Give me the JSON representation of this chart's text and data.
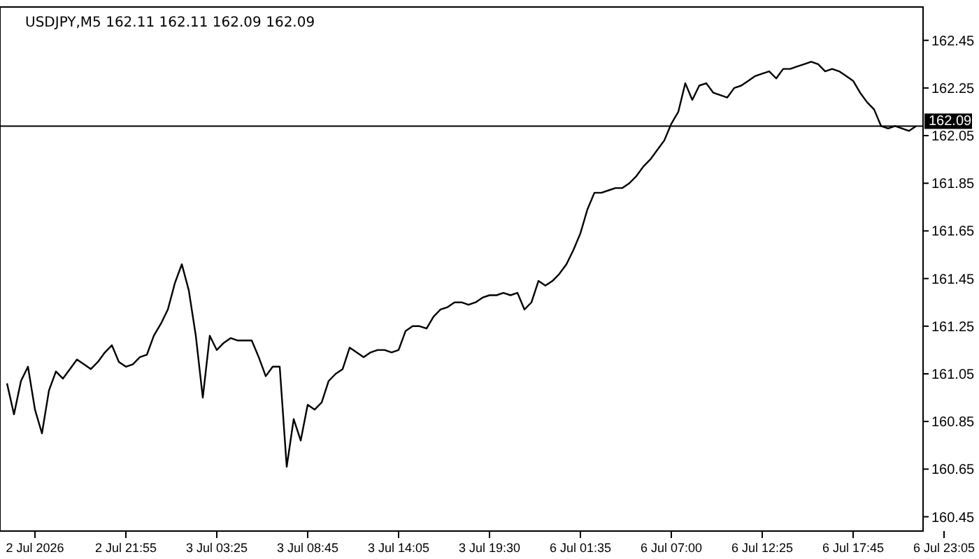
{
  "chart_data": {
    "type": "line",
    "title": "USDJPY,M5  162.11 162.11 162.09 162.09",
    "categories": [
      null,
      null,
      null,
      null,
      "2 Jul 2026",
      null,
      null,
      null,
      null,
      null,
      null,
      null,
      null,
      null,
      null,
      null,
      null,
      "2 Jul 21:55",
      null,
      null,
      null,
      null,
      null,
      null,
      null,
      null,
      null,
      null,
      null,
      null,
      "3 Jul 03:25",
      null,
      null,
      null,
      null,
      null,
      null,
      null,
      null,
      null,
      null,
      null,
      null,
      "3 Jul 08:45",
      null,
      null,
      null,
      null,
      null,
      null,
      null,
      null,
      null,
      null,
      null,
      null,
      "3 Jul 14:05",
      null,
      null,
      null,
      null,
      null,
      null,
      null,
      null,
      null,
      null,
      null,
      null,
      "3 Jul 19:30",
      null,
      null,
      null,
      null,
      null,
      null,
      null,
      null,
      null,
      null,
      null,
      null,
      "6 Jul 01:35",
      null,
      null,
      null,
      null,
      null,
      null,
      null,
      null,
      null,
      null,
      null,
      null,
      "6 Jul 07:00",
      null,
      null,
      null,
      null,
      null,
      null,
      null,
      null,
      null,
      null,
      null,
      null,
      "6 Jul 12:25",
      null,
      null,
      null,
      null,
      null,
      null,
      null,
      null,
      null,
      null,
      null,
      null,
      "6 Jul 17:45",
      null,
      null,
      null,
      null,
      null,
      null,
      null,
      null,
      null,
      null,
      null,
      null,
      "6 Jul 23:05"
    ],
    "ylim": [
      160.39,
      162.59
    ],
    "yticks": [
      160.45,
      160.65,
      160.85,
      161.05,
      161.25,
      161.45,
      161.65,
      161.85,
      162.05,
      162.25,
      162.45
    ],
    "ref_lines": [
      {
        "axis": "y",
        "value": 162.09,
        "label": "162.09",
        "color": "#000000"
      }
    ],
    "series": [
      {
        "color": "#000000",
        "values": [
          161.01,
          160.88,
          161.02,
          161.08,
          160.9,
          160.8,
          160.98,
          161.06,
          161.03,
          161.07,
          161.11,
          161.09,
          161.07,
          161.1,
          161.14,
          161.17,
          161.1,
          161.08,
          161.09,
          161.12,
          161.13,
          161.21,
          161.26,
          161.32,
          161.43,
          161.51,
          161.4,
          161.21,
          160.95,
          161.21,
          161.15,
          161.18,
          161.2,
          161.19,
          161.19,
          161.19,
          161.12,
          161.04,
          161.08,
          161.08,
          160.66,
          160.86,
          160.77,
          160.92,
          160.9,
          160.93,
          161.02,
          161.05,
          161.07,
          161.16,
          161.14,
          161.12,
          161.14,
          161.15,
          161.15,
          161.14,
          161.15,
          161.23,
          161.25,
          161.25,
          161.24,
          161.29,
          161.32,
          161.33,
          161.35,
          161.35,
          161.34,
          161.35,
          161.37,
          161.38,
          161.38,
          161.39,
          161.38,
          161.39,
          161.32,
          161.35,
          161.44,
          161.42,
          161.44,
          161.47,
          161.51,
          161.57,
          161.64,
          161.74,
          161.81,
          161.81,
          161.82,
          161.83,
          161.83,
          161.85,
          161.88,
          161.92,
          161.95,
          161.99,
          162.03,
          162.1,
          162.15,
          162.27,
          162.2,
          162.26,
          162.27,
          162.23,
          162.22,
          162.21,
          162.25,
          162.26,
          162.28,
          162.3,
          162.31,
          162.32,
          162.29,
          162.33,
          162.33,
          162.34,
          162.35,
          162.36,
          162.35,
          162.32,
          162.33,
          162.32,
          162.3,
          162.28,
          162.23,
          162.19,
          162.16,
          162.09,
          162.08,
          162.09,
          162.08,
          162.07,
          162.09,
          null,
          null,
          null,
          null
        ]
      }
    ]
  }
}
